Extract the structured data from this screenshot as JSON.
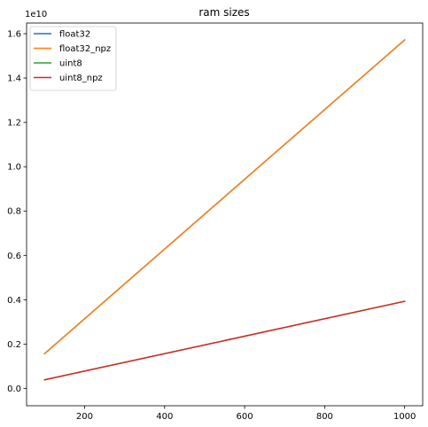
{
  "chart_data": {
    "type": "line",
    "title": "ram sizes",
    "xlabel": "",
    "ylabel": "",
    "y_offset_label": "1e10",
    "xlim": [
      55,
      1045
    ],
    "ylim": [
      -0.078,
      1.648
    ],
    "y_scale_factor": 10000000000,
    "x_ticks": [
      200,
      400,
      600,
      800,
      1000
    ],
    "x_tick_labels": [
      "200",
      "400",
      "600",
      "800",
      "1000"
    ],
    "y_ticks": [
      0.0,
      0.2,
      0.4,
      0.6,
      0.8,
      1.0,
      1.2,
      1.4,
      1.6
    ],
    "y_tick_labels": [
      "0.0",
      "0.2",
      "0.4",
      "0.6",
      "0.8",
      "1.0",
      "1.2",
      "1.4",
      "1.6"
    ],
    "grid": false,
    "legend_position": "top-left",
    "series": [
      {
        "name": "float32",
        "color": "#1f77b4",
        "x": [
          100,
          1000
        ],
        "y": [
          0.157,
          1.572
        ]
      },
      {
        "name": "float32_npz",
        "color": "#ff7f0e",
        "x": [
          100,
          1000
        ],
        "y": [
          0.157,
          1.572
        ]
      },
      {
        "name": "uint8",
        "color": "#2ca02c",
        "x": [
          100,
          1000
        ],
        "y": [
          0.039,
          0.393
        ]
      },
      {
        "name": "uint8_npz",
        "color": "#d62728",
        "x": [
          100,
          1000
        ],
        "y": [
          0.039,
          0.393
        ]
      }
    ]
  }
}
